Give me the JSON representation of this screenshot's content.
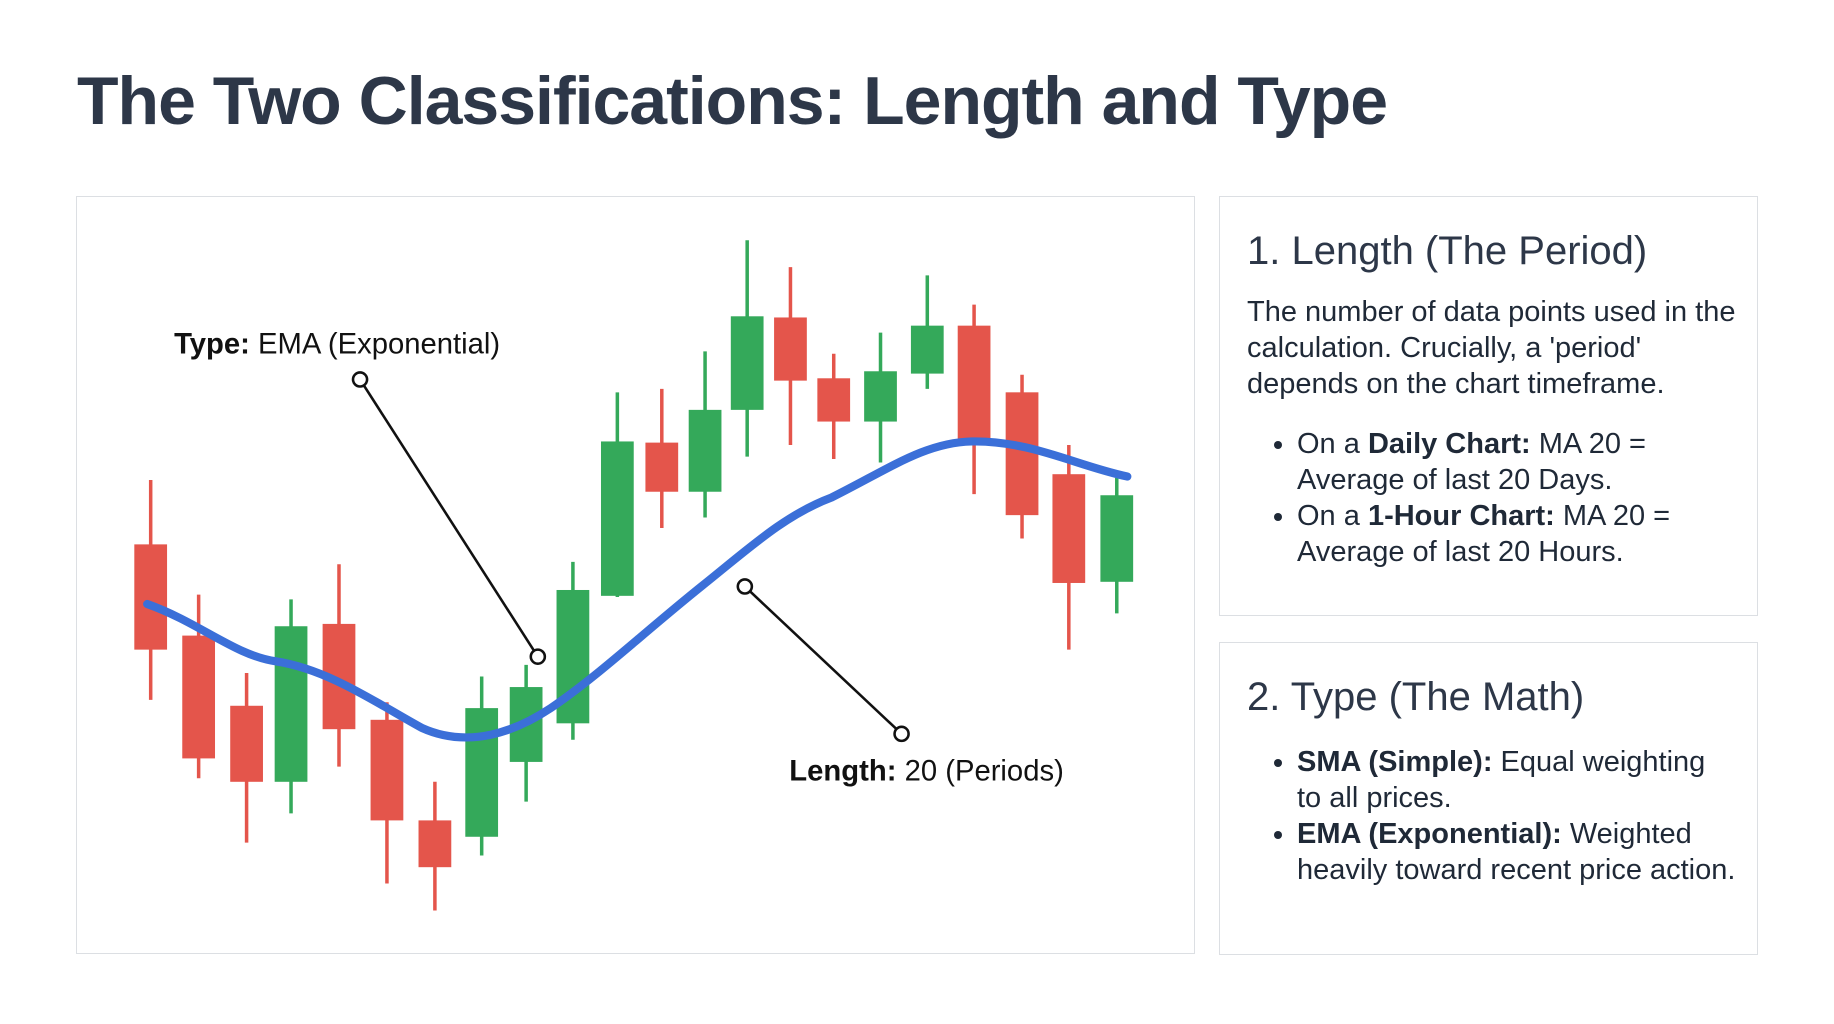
{
  "header": {
    "title": "The Two Classifications: Length and Type"
  },
  "annotations": {
    "type": {
      "label": "Type:",
      "text": " EMA (Exponential)"
    },
    "length": {
      "label": "Length:",
      "text": " 20 (Periods)"
    }
  },
  "cards": [
    {
      "heading": "1. Length (The Period)",
      "paragraph": "The number of data points used in the calculation. Crucially, a 'period' depends on the chart timeframe.",
      "bullets": [
        {
          "lead": "On a ",
          "bold": "Daily Chart:",
          "text": " MA 20 = Average of last 20 Days."
        },
        {
          "lead": "On a ",
          "bold": "1-Hour Chart:",
          "text": " MA 20 = Average of last 20 Hours."
        }
      ]
    },
    {
      "heading": "2. Type (The Math)",
      "bullets": [
        {
          "bold": "SMA (Simple):",
          "text": " Equal weighting to all prices."
        },
        {
          "bold": "EMA (Exponential):",
          "text": " Weighted heavily toward recent price action."
        }
      ]
    }
  ]
}
